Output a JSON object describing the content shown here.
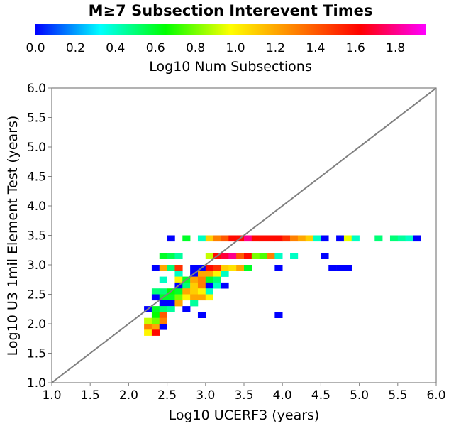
{
  "chart_data": {
    "type": "heatmap",
    "title": "M≥7 Subsection Interevent Times",
    "xlabel": "Log10 UCERF3 (years)",
    "ylabel": "Log10 U3 1mil Element Test (years)",
    "xlim": [
      1.0,
      6.0
    ],
    "ylim": [
      1.0,
      6.0
    ],
    "xticks": [
      "1.0",
      "1.5",
      "2.0",
      "2.5",
      "3.0",
      "3.5",
      "4.0",
      "4.5",
      "5.0",
      "5.5",
      "6.0"
    ],
    "yticks": [
      "1.0",
      "1.5",
      "2.0",
      "2.5",
      "3.0",
      "3.5",
      "4.0",
      "4.5",
      "5.0",
      "5.5",
      "6.0"
    ],
    "bin_size": 0.1,
    "reference_line": "y = x",
    "grid": false,
    "colorbar": {
      "label": "Log10 Num Subsections",
      "range": [
        0.0,
        1.95
      ],
      "ticks": [
        "0.0",
        "0.2",
        "0.4",
        "0.6",
        "0.8",
        "1.0",
        "1.2",
        "1.4",
        "1.6",
        "1.8"
      ],
      "placement": "top",
      "colors": [
        "#0000ff",
        "#00ffff",
        "#00ff00",
        "#ffff00",
        "#ff8000",
        "#ff0000",
        "#ff00ff"
      ]
    },
    "cells": [
      {
        "x": 2.5,
        "y": 3.4,
        "v": 0.0
      },
      {
        "x": 2.7,
        "y": 3.4,
        "v": 0.6
      },
      {
        "x": 2.9,
        "y": 3.4,
        "v": 0.4
      },
      {
        "x": 3.0,
        "y": 3.4,
        "v": 1.1
      },
      {
        "x": 3.1,
        "y": 3.4,
        "v": 1.3
      },
      {
        "x": 3.2,
        "y": 3.4,
        "v": 1.4
      },
      {
        "x": 3.3,
        "y": 3.4,
        "v": 1.6
      },
      {
        "x": 3.4,
        "y": 3.4,
        "v": 1.6
      },
      {
        "x": 3.5,
        "y": 3.4,
        "v": 1.8
      },
      {
        "x": 3.6,
        "y": 3.4,
        "v": 1.6
      },
      {
        "x": 3.7,
        "y": 3.4,
        "v": 1.6
      },
      {
        "x": 3.8,
        "y": 3.4,
        "v": 1.6
      },
      {
        "x": 3.9,
        "y": 3.4,
        "v": 1.6
      },
      {
        "x": 4.0,
        "y": 3.4,
        "v": 1.5
      },
      {
        "x": 4.1,
        "y": 3.4,
        "v": 1.3
      },
      {
        "x": 4.2,
        "y": 3.4,
        "v": 1.2
      },
      {
        "x": 4.3,
        "y": 3.4,
        "v": 1.1
      },
      {
        "x": 4.4,
        "y": 3.4,
        "v": 0.4
      },
      {
        "x": 4.5,
        "y": 3.4,
        "v": 0.0
      },
      {
        "x": 4.7,
        "y": 3.4,
        "v": 0.0
      },
      {
        "x": 4.8,
        "y": 3.4,
        "v": 0.95
      },
      {
        "x": 4.9,
        "y": 3.4,
        "v": 0.4
      },
      {
        "x": 5.2,
        "y": 3.4,
        "v": 0.5
      },
      {
        "x": 5.4,
        "y": 3.4,
        "v": 0.5
      },
      {
        "x": 5.5,
        "y": 3.4,
        "v": 0.45
      },
      {
        "x": 5.6,
        "y": 3.4,
        "v": 0.4
      },
      {
        "x": 5.7,
        "y": 3.4,
        "v": 0.0
      },
      {
        "x": 2.4,
        "y": 3.1,
        "v": 0.6
      },
      {
        "x": 2.5,
        "y": 3.1,
        "v": 0.55
      },
      {
        "x": 2.6,
        "y": 3.1,
        "v": 0.45
      },
      {
        "x": 3.0,
        "y": 3.1,
        "v": 0.9
      },
      {
        "x": 3.1,
        "y": 3.1,
        "v": 1.6
      },
      {
        "x": 3.2,
        "y": 3.1,
        "v": 1.7
      },
      {
        "x": 3.3,
        "y": 3.1,
        "v": 1.8
      },
      {
        "x": 3.4,
        "y": 3.1,
        "v": 1.4
      },
      {
        "x": 3.5,
        "y": 3.1,
        "v": 1.6
      },
      {
        "x": 3.6,
        "y": 3.1,
        "v": 0.8
      },
      {
        "x": 3.7,
        "y": 3.1,
        "v": 0.75
      },
      {
        "x": 3.8,
        "y": 3.1,
        "v": 1.3
      },
      {
        "x": 3.9,
        "y": 3.1,
        "v": 0.4
      },
      {
        "x": 4.1,
        "y": 3.1,
        "v": 0.4
      },
      {
        "x": 4.5,
        "y": 3.1,
        "v": 0.0
      },
      {
        "x": 2.3,
        "y": 2.9,
        "v": 0.0
      },
      {
        "x": 2.4,
        "y": 2.9,
        "v": 1.2
      },
      {
        "x": 2.5,
        "y": 2.9,
        "v": 0.5
      },
      {
        "x": 2.6,
        "y": 2.9,
        "v": 1.5
      },
      {
        "x": 2.8,
        "y": 2.9,
        "v": 0.0
      },
      {
        "x": 2.9,
        "y": 2.9,
        "v": 0.0
      },
      {
        "x": 3.0,
        "y": 2.9,
        "v": 1.6
      },
      {
        "x": 3.1,
        "y": 2.9,
        "v": 1.5
      },
      {
        "x": 3.2,
        "y": 2.9,
        "v": 1.1
      },
      {
        "x": 3.3,
        "y": 2.9,
        "v": 1.05
      },
      {
        "x": 3.4,
        "y": 2.9,
        "v": 1.2
      },
      {
        "x": 3.5,
        "y": 2.9,
        "v": 0.6
      },
      {
        "x": 3.9,
        "y": 2.9,
        "v": 0.0
      },
      {
        "x": 4.6,
        "y": 2.9,
        "v": 0.0
      },
      {
        "x": 4.7,
        "y": 2.9,
        "v": 0.0
      },
      {
        "x": 4.8,
        "y": 2.9,
        "v": 0.0
      },
      {
        "x": 2.6,
        "y": 2.8,
        "v": 0.4
      },
      {
        "x": 2.8,
        "y": 2.8,
        "v": 0.0
      },
      {
        "x": 2.9,
        "y": 2.8,
        "v": 1.2
      },
      {
        "x": 3.0,
        "y": 2.8,
        "v": 1.2
      },
      {
        "x": 3.1,
        "y": 2.8,
        "v": 1.0
      },
      {
        "x": 3.2,
        "y": 2.8,
        "v": 0.4
      },
      {
        "x": 2.4,
        "y": 2.7,
        "v": 0.4
      },
      {
        "x": 2.6,
        "y": 2.7,
        "v": 1.0
      },
      {
        "x": 2.7,
        "y": 2.7,
        "v": 0.6
      },
      {
        "x": 2.8,
        "y": 2.7,
        "v": 1.2
      },
      {
        "x": 2.9,
        "y": 2.7,
        "v": 1.3
      },
      {
        "x": 3.0,
        "y": 2.7,
        "v": 0.6
      },
      {
        "x": 3.1,
        "y": 2.7,
        "v": 0.5
      },
      {
        "x": 2.6,
        "y": 2.6,
        "v": 0.0
      },
      {
        "x": 2.7,
        "y": 2.6,
        "v": 0.5
      },
      {
        "x": 2.8,
        "y": 2.6,
        "v": 1.1
      },
      {
        "x": 2.9,
        "y": 2.6,
        "v": 1.3
      },
      {
        "x": 3.0,
        "y": 2.6,
        "v": 0.0
      },
      {
        "x": 3.1,
        "y": 2.6,
        "v": 0.4
      },
      {
        "x": 3.2,
        "y": 2.6,
        "v": 0.0
      },
      {
        "x": 2.3,
        "y": 2.5,
        "v": 0.5
      },
      {
        "x": 2.4,
        "y": 2.5,
        "v": 0.5
      },
      {
        "x": 2.5,
        "y": 2.5,
        "v": 0.65
      },
      {
        "x": 2.6,
        "y": 2.5,
        "v": 0.6
      },
      {
        "x": 2.7,
        "y": 2.5,
        "v": 1.2
      },
      {
        "x": 2.8,
        "y": 2.5,
        "v": 1.1
      },
      {
        "x": 2.9,
        "y": 2.5,
        "v": 1.0
      },
      {
        "x": 3.0,
        "y": 2.5,
        "v": 0.4
      },
      {
        "x": 2.3,
        "y": 2.4,
        "v": 0.0
      },
      {
        "x": 2.4,
        "y": 2.4,
        "v": 0.6
      },
      {
        "x": 2.5,
        "y": 2.4,
        "v": 0.6
      },
      {
        "x": 2.6,
        "y": 2.4,
        "v": 0.8
      },
      {
        "x": 2.7,
        "y": 2.4,
        "v": 1.0
      },
      {
        "x": 2.8,
        "y": 2.4,
        "v": 1.2
      },
      {
        "x": 2.9,
        "y": 2.4,
        "v": 1.2
      },
      {
        "x": 3.0,
        "y": 2.4,
        "v": 1.0
      },
      {
        "x": 2.4,
        "y": 2.3,
        "v": 0.0
      },
      {
        "x": 2.5,
        "y": 2.3,
        "v": 0.0
      },
      {
        "x": 2.6,
        "y": 2.3,
        "v": 1.2
      },
      {
        "x": 2.8,
        "y": 2.3,
        "v": 0.45
      },
      {
        "x": 2.2,
        "y": 2.2,
        "v": 0.0
      },
      {
        "x": 2.3,
        "y": 2.2,
        "v": 0.6
      },
      {
        "x": 2.4,
        "y": 2.2,
        "v": 0.5
      },
      {
        "x": 2.5,
        "y": 2.2,
        "v": 0.45
      },
      {
        "x": 2.7,
        "y": 2.2,
        "v": 0.0
      },
      {
        "x": 2.3,
        "y": 2.1,
        "v": 0.65
      },
      {
        "x": 2.4,
        "y": 2.1,
        "v": 1.4
      },
      {
        "x": 2.9,
        "y": 2.1,
        "v": 0.0
      },
      {
        "x": 3.9,
        "y": 2.1,
        "v": 0.0
      },
      {
        "x": 2.2,
        "y": 2.0,
        "v": 0.9
      },
      {
        "x": 2.3,
        "y": 2.0,
        "v": 0.8
      },
      {
        "x": 2.4,
        "y": 2.0,
        "v": 1.3
      },
      {
        "x": 2.2,
        "y": 1.9,
        "v": 1.3
      },
      {
        "x": 2.3,
        "y": 1.9,
        "v": 1.2
      },
      {
        "x": 2.4,
        "y": 1.9,
        "v": 0.0
      },
      {
        "x": 2.2,
        "y": 1.8,
        "v": 1.0
      },
      {
        "x": 2.3,
        "y": 1.8,
        "v": 1.6
      }
    ]
  }
}
